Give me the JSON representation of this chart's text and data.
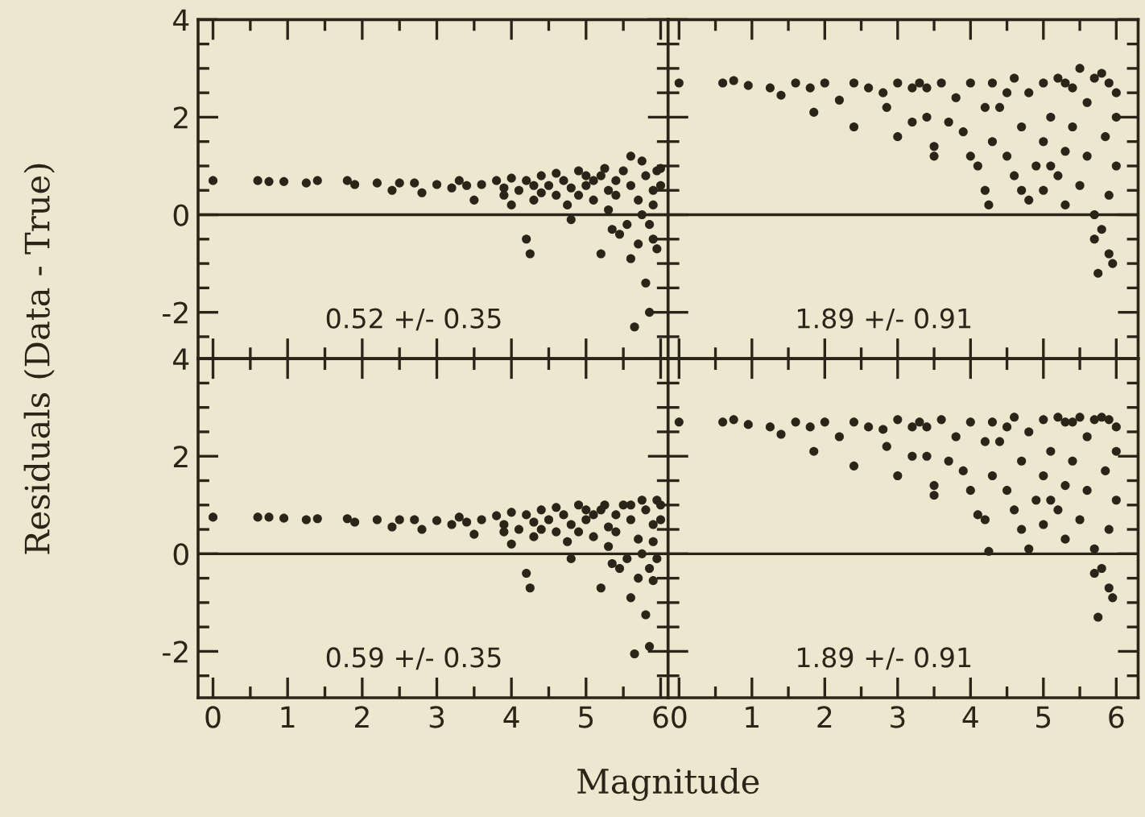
{
  "chart_data": [
    {
      "type": "scatter",
      "ylabel": "Residuals (Data - True)",
      "xlim": [
        -0.2,
        6.1
      ],
      "ylim": [
        -2.95,
        4
      ],
      "xticks": [
        0,
        1,
        2,
        3,
        4,
        5,
        6
      ],
      "yticks": [
        -2,
        0,
        2,
        4
      ],
      "tick_labels": "y",
      "marker": "circle",
      "grid": false,
      "series": [
        {
          "color": "#2b2418",
          "x": [
            0,
            0.6,
            0.75,
            0.95,
            1.25,
            1.4,
            1.8,
            1.9,
            2.2,
            2.4,
            2.5,
            2.8,
            2.7,
            3.0,
            3.2,
            3.5,
            3.3,
            3.6,
            3.8,
            3.9,
            4.0,
            4.0,
            4.2,
            4.1,
            4.2,
            4.25,
            4.3,
            4.4,
            4.5,
            4.6,
            4.7,
            4.75,
            4.8,
            4.9,
            5.0,
            5.1,
            5.2,
            5.2,
            5.3,
            5.35,
            5.4,
            5.45,
            5.5,
            5.55,
            5.6,
            5.6,
            5.65,
            5.7,
            5.75,
            5.75,
            5.8,
            5.85,
            5.85,
            5.9,
            5.9,
            5.95,
            5.95,
            6.0,
            5.3,
            5.8,
            4.3,
            3.9,
            4.6,
            4.9,
            5.1,
            5.4,
            5.7,
            6.0,
            5.0,
            4.4,
            3.4,
            5.6,
            5.9,
            4.8,
            5.25
          ],
          "values": [
            0.7,
            0.7,
            0.68,
            0.68,
            0.65,
            0.7,
            0.7,
            0.62,
            0.65,
            0.5,
            0.65,
            0.45,
            0.65,
            0.62,
            0.55,
            0.3,
            0.7,
            0.62,
            0.7,
            0.4,
            0.2,
            0.75,
            0.7,
            0.5,
            -0.5,
            -0.8,
            0.3,
            0.8,
            0.6,
            0.4,
            0.7,
            0.2,
            -0.1,
            0.9,
            0.6,
            0.3,
            0.8,
            -0.8,
            0.1,
            -0.3,
            0.7,
            -0.4,
            0.9,
            -0.2,
            1.2,
            -0.9,
            -2.3,
            -0.6,
            1.1,
            0.0,
            -1.4,
            -2.0,
            -0.2,
            0.5,
            -0.5,
            0.9,
            -0.7,
            0.6,
            0.5,
            0.8,
            0.6,
            0.55,
            0.85,
            0.4,
            0.7,
            0.4,
            0.3,
            0.95,
            0.8,
            0.45,
            0.6,
            0.6,
            0.2,
            0.55,
            0.95
          ]
        }
      ],
      "ref_lines": [
        {
          "axis": "y",
          "value": 0
        }
      ],
      "annotations": [
        "0.52 +/- 0.35"
      ]
    },
    {
      "type": "scatter",
      "xlim": [
        -0.15,
        6.3
      ],
      "ylim": [
        -2.95,
        4
      ],
      "xticks": [
        0,
        1,
        2,
        3,
        4,
        5,
        6
      ],
      "yticks": [
        -2,
        0,
        2,
        4
      ],
      "tick_labels": false,
      "marker": "circle",
      "grid": false,
      "series": [
        {
          "color": "#2b2418",
          "x": [
            0,
            0.6,
            0.75,
            0.95,
            1.25,
            1.4,
            1.6,
            1.8,
            1.85,
            2.0,
            2.2,
            2.4,
            2.4,
            2.6,
            2.8,
            2.85,
            3.0,
            3.0,
            3.2,
            3.2,
            3.4,
            3.4,
            3.5,
            3.5,
            3.6,
            3.7,
            3.8,
            3.9,
            4.0,
            4.0,
            4.1,
            4.2,
            4.25,
            4.3,
            4.3,
            4.4,
            4.5,
            4.6,
            4.6,
            4.7,
            4.8,
            4.8,
            4.9,
            5.0,
            5.0,
            5.0,
            5.1,
            5.2,
            5.2,
            5.3,
            5.3,
            5.4,
            5.4,
            5.5,
            5.5,
            5.6,
            5.6,
            5.7,
            5.7,
            5.75,
            5.8,
            5.8,
            5.85,
            5.9,
            5.9,
            5.95,
            6.0,
            6.0,
            6.0,
            4.5,
            4.7,
            5.1,
            5.9,
            5.7,
            5.3,
            4.2,
            3.3
          ],
          "values": [
            2.7,
            2.7,
            2.75,
            2.65,
            2.6,
            2.45,
            2.7,
            2.6,
            2.1,
            2.7,
            2.35,
            2.7,
            1.8,
            2.6,
            2.5,
            2.2,
            2.7,
            1.6,
            2.6,
            1.9,
            2.6,
            2.0,
            1.4,
            1.2,
            2.7,
            1.9,
            2.4,
            1.7,
            2.7,
            1.2,
            1.0,
            0.5,
            0.2,
            2.7,
            1.5,
            2.2,
            1.2,
            2.8,
            0.8,
            1.8,
            0.3,
            2.5,
            1.0,
            2.7,
            1.5,
            0.5,
            2.0,
            0.8,
            2.8,
            1.3,
            0.2,
            2.6,
            1.8,
            0.6,
            3.0,
            1.2,
            2.3,
            0.0,
            -0.5,
            -1.2,
            2.9,
            -0.3,
            1.6,
            -0.8,
            0.4,
            -1.0,
            2.5,
            1.0,
            2.0,
            2.5,
            0.5,
            1.0,
            2.7,
            2.8,
            2.7,
            2.2,
            2.7
          ]
        }
      ],
      "ref_lines": [
        {
          "axis": "y",
          "value": 0
        }
      ],
      "annotations": [
        "1.89 +/- 0.91"
      ]
    },
    {
      "type": "scatter",
      "xlabel": "Magnitude",
      "xlim": [
        -0.2,
        6.1
      ],
      "ylim": [
        -2.95,
        4
      ],
      "xticks": [
        0,
        1,
        2,
        3,
        4,
        5,
        6
      ],
      "yticks": [
        -2,
        0,
        2,
        4
      ],
      "marker": "circle",
      "grid": false,
      "series": [
        {
          "color": "#2b2418",
          "x": [
            0,
            0.6,
            0.75,
            0.95,
            1.25,
            1.4,
            1.8,
            1.9,
            2.2,
            2.4,
            2.5,
            2.8,
            2.7,
            3.0,
            3.2,
            3.5,
            3.3,
            3.6,
            3.8,
            3.9,
            4.0,
            4.0,
            4.2,
            4.1,
            4.2,
            4.25,
            4.3,
            4.4,
            4.5,
            4.6,
            4.7,
            4.75,
            4.8,
            4.9,
            5.0,
            5.1,
            5.2,
            5.2,
            5.3,
            5.35,
            5.4,
            5.45,
            5.5,
            5.55,
            5.6,
            5.6,
            5.65,
            5.7,
            5.75,
            5.75,
            5.8,
            5.85,
            5.85,
            5.9,
            5.9,
            5.95,
            5.95,
            6.0,
            5.3,
            5.8,
            4.3,
            3.9,
            4.6,
            4.9,
            5.1,
            5.4,
            5.7,
            6.0,
            5.0,
            4.4,
            3.4,
            5.6,
            5.9,
            4.8,
            5.25
          ],
          "values": [
            0.75,
            0.75,
            0.75,
            0.73,
            0.7,
            0.72,
            0.72,
            0.65,
            0.7,
            0.55,
            0.7,
            0.5,
            0.7,
            0.68,
            0.6,
            0.4,
            0.75,
            0.7,
            0.78,
            0.45,
            0.2,
            0.85,
            0.8,
            0.5,
            -0.4,
            -0.7,
            0.35,
            0.9,
            0.7,
            0.45,
            0.8,
            0.25,
            -0.1,
            1.0,
            0.7,
            0.35,
            0.9,
            -0.7,
            0.15,
            -0.2,
            0.8,
            -0.3,
            1.0,
            -0.1,
            1.0,
            -0.9,
            -2.05,
            -0.5,
            1.1,
            0.0,
            -1.25,
            -1.9,
            -0.3,
            0.6,
            -0.55,
            1.1,
            -0.1,
            0.7,
            0.55,
            0.9,
            0.65,
            0.6,
            0.95,
            0.45,
            0.8,
            0.45,
            0.3,
            1.0,
            0.9,
            0.5,
            0.65,
            0.7,
            0.25,
            0.6,
            1.0
          ]
        }
      ],
      "ref_lines": [
        {
          "axis": "y",
          "value": 0
        }
      ],
      "annotations": [
        "0.59 +/- 0.35"
      ]
    },
    {
      "type": "scatter",
      "xlim": [
        -0.15,
        6.3
      ],
      "ylim": [
        -2.95,
        4
      ],
      "xticks": [
        0,
        1,
        2,
        3,
        4,
        5,
        6
      ],
      "yticks": [
        -2,
        0,
        2,
        4
      ],
      "tick_labels": "x",
      "marker": "circle",
      "grid": false,
      "series": [
        {
          "color": "#2b2418",
          "x": [
            0,
            0.6,
            0.75,
            0.95,
            1.25,
            1.4,
            1.6,
            1.8,
            1.85,
            2.0,
            2.2,
            2.4,
            2.4,
            2.6,
            2.8,
            2.85,
            3.0,
            3.0,
            3.2,
            3.2,
            3.4,
            3.4,
            3.5,
            3.5,
            3.6,
            3.7,
            3.8,
            3.9,
            4.0,
            4.0,
            4.1,
            4.2,
            4.25,
            4.3,
            4.3,
            4.4,
            4.5,
            4.6,
            4.6,
            4.7,
            4.8,
            4.8,
            4.9,
            5.0,
            5.0,
            5.0,
            5.1,
            5.2,
            5.2,
            5.3,
            5.3,
            5.4,
            5.4,
            5.5,
            5.5,
            5.6,
            5.6,
            5.7,
            5.7,
            5.75,
            5.8,
            5.8,
            5.85,
            5.9,
            5.9,
            5.95,
            6.0,
            6.0,
            6.0,
            4.5,
            4.7,
            5.1,
            5.9,
            5.7,
            5.3,
            4.2,
            3.3
          ],
          "values": [
            2.7,
            2.7,
            2.75,
            2.65,
            2.6,
            2.45,
            2.7,
            2.6,
            2.1,
            2.7,
            2.4,
            2.7,
            1.8,
            2.6,
            2.55,
            2.2,
            2.75,
            1.6,
            2.6,
            2.0,
            2.6,
            2.0,
            1.4,
            1.2,
            2.75,
            1.9,
            2.4,
            1.7,
            2.7,
            1.3,
            0.8,
            0.7,
            0.05,
            2.7,
            1.6,
            2.3,
            1.3,
            2.8,
            0.9,
            1.9,
            0.1,
            2.5,
            1.1,
            2.75,
            1.6,
            0.6,
            2.1,
            0.9,
            2.8,
            1.4,
            0.3,
            2.7,
            1.9,
            0.7,
            2.8,
            1.3,
            2.4,
            0.1,
            -0.4,
            -1.3,
            2.8,
            -0.3,
            1.7,
            -0.7,
            0.5,
            -0.9,
            2.6,
            1.1,
            2.1,
            2.6,
            0.5,
            1.1,
            2.75,
            2.75,
            2.7,
            2.3,
            2.7
          ]
        }
      ],
      "ref_lines": [
        {
          "axis": "y",
          "value": 0
        }
      ],
      "annotations": [
        "1.89 +/- 0.91"
      ]
    }
  ]
}
